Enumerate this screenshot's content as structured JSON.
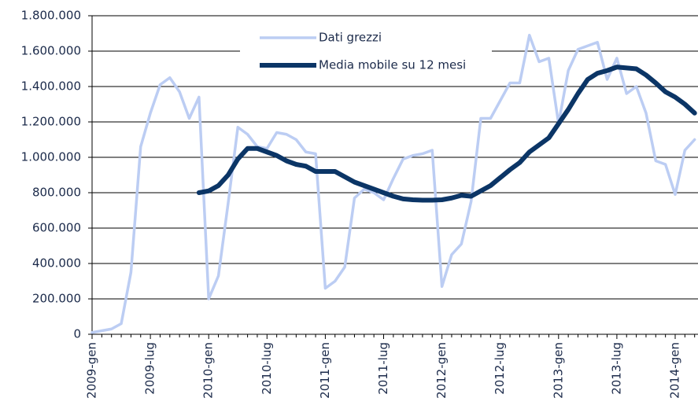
{
  "chart_data": {
    "type": "line",
    "categories": [
      "2009-gen",
      null,
      null,
      null,
      null,
      null,
      "2009-lug",
      null,
      null,
      null,
      null,
      null,
      "2010-gen",
      null,
      null,
      null,
      null,
      null,
      "2010-lug",
      null,
      null,
      null,
      null,
      null,
      "2011-gen",
      null,
      null,
      null,
      null,
      null,
      "2011-lug",
      null,
      null,
      null,
      null,
      null,
      "2012-gen",
      null,
      null,
      null,
      null,
      null,
      "2012-lug",
      null,
      null,
      null,
      null,
      null,
      "2013-gen",
      null,
      null,
      null,
      null,
      null,
      "2013-lug",
      null,
      null,
      null,
      null,
      null,
      "2014-gen",
      null,
      null
    ],
    "series": [
      {
        "name": "Dati grezzi",
        "color": "#bccdf3",
        "values": [
          10000,
          20000,
          30000,
          60000,
          350000,
          1060000,
          1250000,
          1410000,
          1450000,
          1370000,
          1220000,
          1340000,
          200000,
          330000,
          740000,
          1170000,
          1130000,
          1060000,
          1050000,
          1140000,
          1130000,
          1100000,
          1030000,
          1020000,
          260000,
          300000,
          380000,
          770000,
          820000,
          800000,
          760000,
          880000,
          990000,
          1010000,
          1020000,
          1040000,
          270000,
          450000,
          510000,
          750000,
          1220000,
          1220000,
          1320000,
          1420000,
          1420000,
          1690000,
          1540000,
          1560000,
          1190000,
          1490000,
          1610000,
          1630000,
          1650000,
          1440000,
          1560000,
          1360000,
          1400000,
          1250000,
          980000,
          960000,
          790000,
          1040000,
          1100000
        ]
      },
      {
        "name": "Media mobile su 12 mesi",
        "color": "#0b3566",
        "values": [
          null,
          null,
          null,
          null,
          null,
          null,
          null,
          null,
          null,
          null,
          null,
          800000,
          810000,
          840000,
          900000,
          990000,
          1050000,
          1050000,
          1030000,
          1010000,
          980000,
          960000,
          950000,
          920000,
          920000,
          920000,
          890000,
          860000,
          840000,
          820000,
          800000,
          780000,
          765000,
          760000,
          758000,
          758000,
          760000,
          770000,
          785000,
          780000,
          810000,
          840000,
          885000,
          930000,
          970000,
          1030000,
          1070000,
          1110000,
          1190000,
          1270000,
          1360000,
          1440000,
          1475000,
          1490000,
          1510000,
          1505000,
          1500000,
          1465000,
          1420000,
          1370000,
          1340000,
          1300000,
          1250000
        ]
      }
    ],
    "ylim": [
      0,
      1800000
    ],
    "yticks": [
      0,
      {
        "value": 200000,
        "label": "200.000"
      },
      {
        "value": 400000,
        "label": "400.000"
      },
      {
        "value": 600000,
        "label": "600.000"
      },
      {
        "value": 800000,
        "label": "800.000"
      },
      {
        "value": 1000000,
        "label": "1.000.000"
      },
      {
        "value": 1200000,
        "label": "1.200.000"
      },
      {
        "value": 1400000,
        "label": "1.400.000"
      },
      {
        "value": 1600000,
        "label": "1.600.000"
      },
      {
        "value": 1800000,
        "label": "1.800.000"
      }
    ],
    "grid": true
  }
}
